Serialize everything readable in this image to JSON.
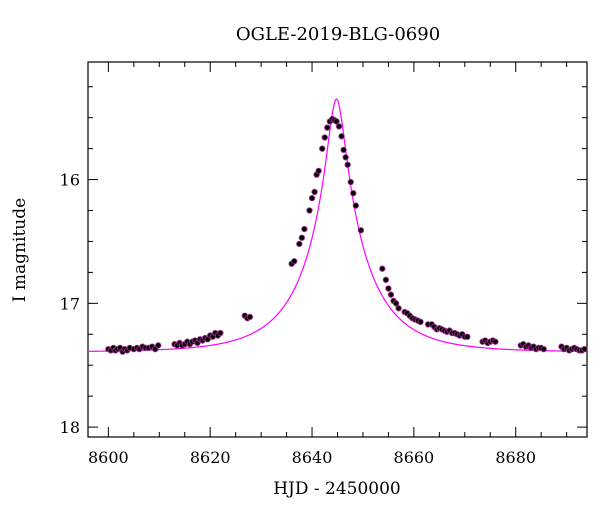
{
  "chart_data": {
    "type": "scatter",
    "title": "OGLE-2019-BLG-0690",
    "xlabel": "HJD - 2450000",
    "ylabel": "I magnitude",
    "xlim": [
      8596,
      8694
    ],
    "ylim": [
      15.05,
      18.08
    ],
    "y_inverted": true,
    "x_ticks": [
      8600,
      8620,
      8640,
      8660,
      8680
    ],
    "x_tick_labels": [
      "8600",
      "8620",
      "8640",
      "8660",
      "8680"
    ],
    "y_ticks": [
      16,
      17,
      18
    ],
    "y_tick_labels": [
      "16",
      "17",
      "18"
    ],
    "colors": {
      "points": "#000000",
      "point_outline": "#9b2a8b",
      "model": "#ff00ff"
    },
    "model": {
      "t0": 8644.8,
      "u0": 0.13,
      "tE": 12.5,
      "I_source": 17.6,
      "I_blend": 19.3
    },
    "series": [
      {
        "x": [
          8600.0,
          8600.5,
          8601.0,
          8601.4,
          8601.8,
          8602.3,
          8602.8,
          8603.2,
          8603.7,
          8604.2,
          8605.0,
          8605.6,
          8606.1,
          8606.7,
          8607.3,
          8607.9,
          8608.6,
          8609.2,
          8609.8,
          8613.0,
          8613.5,
          8614.0,
          8614.5,
          8615.0,
          8615.5,
          8616.0,
          8616.5,
          8617.0,
          8617.5,
          8618.0,
          8618.5,
          8619.0,
          8619.5,
          8620.0,
          8620.5,
          8621.0,
          8621.5,
          8622.0,
          8626.8,
          8627.3,
          8627.8,
          8636.0,
          8636.5,
          8637.5,
          8638.0,
          8638.5,
          8639.5,
          8640.0,
          8640.5,
          8640.9,
          8641.3,
          8642.0,
          8642.5,
          8643.0,
          8643.5,
          8644.0,
          8644.4,
          8644.8,
          8645.3,
          8645.8,
          8646.2,
          8646.6,
          8647.0,
          8647.6,
          8648.1,
          8648.6,
          8649.6,
          8653.8,
          8654.5,
          8655.0,
          8655.5,
          8656.0,
          8656.5,
          8657.0,
          8658.2,
          8658.7,
          8659.2,
          8659.7,
          8660.2,
          8660.8,
          8661.3,
          8662.8,
          8663.5,
          8664.0,
          8664.5,
          8665.0,
          8665.5,
          8666.0,
          8666.5,
          8667.0,
          8667.5,
          8668.0,
          8668.5,
          8669.0,
          8669.5,
          8670.0,
          8670.5,
          8673.5,
          8674.0,
          8674.5,
          8675.0,
          8675.5,
          8676.0,
          8681.0,
          8681.5,
          8682.0,
          8682.5,
          8683.0,
          8683.5,
          8684.0,
          8684.5,
          8685.0,
          8685.5,
          8689.0,
          8689.5,
          8690.0,
          8690.5,
          8691.0,
          8691.5,
          8692.0,
          8692.5,
          8693.0,
          8693.5
        ],
        "y": [
          17.37,
          17.38,
          17.36,
          17.38,
          17.37,
          17.36,
          17.39,
          17.37,
          17.38,
          17.36,
          17.37,
          17.36,
          17.37,
          17.35,
          17.36,
          17.36,
          17.35,
          17.37,
          17.34,
          17.33,
          17.34,
          17.32,
          17.34,
          17.33,
          17.31,
          17.33,
          17.31,
          17.3,
          17.32,
          17.29,
          17.3,
          17.28,
          17.29,
          17.26,
          17.27,
          17.24,
          17.26,
          17.24,
          17.1,
          17.12,
          17.11,
          16.68,
          16.66,
          16.52,
          16.47,
          16.4,
          16.25,
          16.15,
          16.1,
          15.96,
          15.93,
          15.75,
          15.66,
          15.58,
          15.53,
          15.51,
          15.52,
          15.53,
          15.57,
          15.65,
          15.76,
          15.82,
          15.88,
          16.02,
          16.11,
          16.21,
          16.41,
          16.72,
          16.81,
          16.88,
          16.93,
          16.98,
          17.0,
          17.04,
          17.07,
          17.08,
          17.1,
          17.12,
          17.13,
          17.14,
          17.15,
          17.17,
          17.17,
          17.19,
          17.21,
          17.2,
          17.21,
          17.22,
          17.23,
          17.22,
          17.24,
          17.24,
          17.25,
          17.26,
          17.25,
          17.27,
          17.27,
          17.31,
          17.3,
          17.32,
          17.31,
          17.3,
          17.31,
          17.34,
          17.33,
          17.35,
          17.34,
          17.36,
          17.35,
          17.37,
          17.36,
          17.36,
          17.37,
          17.35,
          17.37,
          17.36,
          17.38,
          17.37,
          17.36,
          17.37,
          17.38,
          17.38,
          17.37
        ]
      }
    ]
  }
}
